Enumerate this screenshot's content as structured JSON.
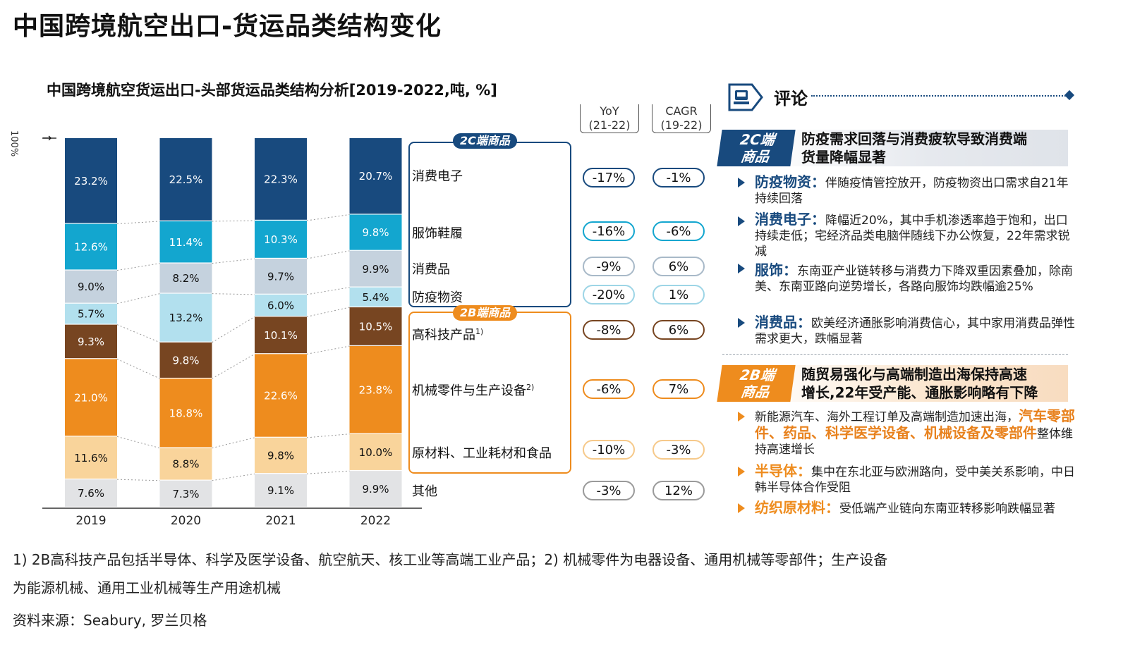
{
  "page_title": "中国跨境航空出口-货运品类结构变化",
  "chart_title": "中国跨境航空货运出口-头部货运品类结构分析[2019-2022,吨, %]",
  "chart_data": {
    "type": "bar",
    "stacked": true,
    "normalized_to": "100%",
    "y_axis_label": "100%",
    "categories": [
      "2019",
      "2020",
      "2021",
      "2022"
    ],
    "series": [
      {
        "name": "其他",
        "color": "#e2e3e5",
        "text_color": "#111111",
        "values": [
          7.6,
          7.3,
          9.1,
          9.9
        ],
        "labels": [
          "7.6%",
          "7.3%",
          "9.1%",
          "9.9%"
        ]
      },
      {
        "name": "原材料、工业耗材和食品",
        "color": "#f9d49b",
        "text_color": "#111111",
        "values": [
          11.6,
          8.8,
          9.8,
          10.0
        ],
        "labels": [
          "11.6%",
          "8.8%",
          "9.8%",
          "10.0%"
        ]
      },
      {
        "name": "机械零件与生产设备",
        "sup": "2)",
        "color": "#ee8c1e",
        "text_color": "#ffffff",
        "values": [
          21.0,
          18.8,
          22.6,
          23.8
        ],
        "labels": [
          "21.0%",
          "18.8%",
          "22.6%",
          "23.8%"
        ]
      },
      {
        "name": "高科技产品",
        "sup": "1)",
        "color": "#774521",
        "text_color": "#ffffff",
        "values": [
          9.3,
          9.8,
          10.1,
          10.5
        ],
        "labels": [
          "9.3%",
          "9.8%",
          "10.1%",
          "10.5%"
        ]
      },
      {
        "name": "防疫物资",
        "color": "#b2e0ee",
        "text_color": "#111111",
        "values": [
          5.7,
          13.2,
          6.0,
          5.4
        ],
        "labels": [
          "5.7%",
          "13.2%",
          "6.0%",
          "5.4%"
        ]
      },
      {
        "name": "消费品",
        "color": "#c5d2de",
        "text_color": "#111111",
        "values": [
          9.0,
          8.2,
          9.7,
          9.9
        ],
        "labels": [
          "9.0%",
          "8.2%",
          "9.7%",
          "9.9%"
        ]
      },
      {
        "name": "服饰鞋履",
        "color": "#13a6cf",
        "text_color": "#ffffff",
        "values": [
          12.6,
          11.4,
          10.3,
          9.8
        ],
        "labels": [
          "12.6%",
          "11.4%",
          "10.3%",
          "9.8%"
        ]
      },
      {
        "name": "消费电子",
        "color": "#184a7e",
        "text_color": "#ffffff",
        "values": [
          23.2,
          22.5,
          22.3,
          20.7
        ],
        "labels": [
          "23.2%",
          "22.5%",
          "22.3%",
          "20.7%"
        ]
      }
    ],
    "metrics_headers": {
      "yoy": [
        "YoY",
        "(21-22)"
      ],
      "cagr": [
        "CAGR",
        "(19-22)"
      ]
    },
    "metrics": [
      {
        "name": "消费电子",
        "yoy": "-17%",
        "cagr": "-1%",
        "border": "#184a7e"
      },
      {
        "name": "服饰鞋履",
        "yoy": "-16%",
        "cagr": "-6%",
        "border": "#13a6cf"
      },
      {
        "name": "消费品",
        "yoy": "-9%",
        "cagr": "6%",
        "border": "#a8b9c8"
      },
      {
        "name": "防疫物资",
        "yoy": "-20%",
        "cagr": "1%",
        "border": "#9dd5e6"
      },
      {
        "name": "高科技产品",
        "yoy": "-8%",
        "cagr": "6%",
        "border": "#774521"
      },
      {
        "name": "机械零件与生产设备",
        "yoy": "-6%",
        "cagr": "7%",
        "border": "#ee8c1e"
      },
      {
        "name": "原材料、工业耗材和食品",
        "yoy": "-10%",
        "cagr": "-3%",
        "border": "#f6c98a"
      },
      {
        "name": "其他",
        "yoy": "-3%",
        "cagr": "12%",
        "border": "#9a9a9a"
      }
    ],
    "group_tags": {
      "c2": "2C端商品",
      "b2": "2B端商品"
    }
  },
  "colors": {
    "navy": "#184a7e",
    "orange": "#ee8c1e",
    "sky": "#13a6cf"
  },
  "comment": {
    "title": "评论",
    "icon": "comment-icon",
    "c2": {
      "badge": [
        "2C端",
        "商品"
      ],
      "headline": [
        "防疫需求回落与消费疲软导致消费端",
        "货量降幅显著"
      ],
      "bullets": [
        {
          "key": "防疫物资：",
          "text": "伴随疫情管控放开，防疫物资出口需求自21年持续回落"
        },
        {
          "key": "消费电子：",
          "text": "降幅近20%，其中手机渗透率趋于饱和，出口持续走低；宅经济品类电脑伴随线下办公恢复，22年需求锐减"
        },
        {
          "key": "服饰：",
          "text": "东南亚产业链转移与消费力下降双重因素叠加，除南美、东南亚路向逆势增长，各路向服饰均跌幅逾25%"
        },
        {
          "key": "消费品：",
          "text": "欧美经济通胀影响消费信心，其中家用消费品弹性需求更大，跌幅显著"
        }
      ]
    },
    "b2": {
      "badge": [
        "2B端",
        "商品"
      ],
      "headline": [
        "随贸易强化与高端制造出海保持高速",
        "增长,22年受产能、通胀影响略有下降"
      ],
      "bullets": [
        {
          "pre": "新能源汽车、海外工程订单及高端制造加速出海，",
          "hl": "汽车零部件、药品、科学医学设备、机械设备及零部件",
          "post": "整体维持高速增长"
        },
        {
          "key": "半导体：",
          "text": "集中在东北亚与欧洲路向，受中美关系影响，中日韩半导体合作受阻"
        },
        {
          "key": "纺织原材料：",
          "text": "受低端产业链向东南亚转移影响跌幅显著"
        }
      ]
    }
  },
  "footnotes": [
    "1) 2B高科技产品包括半导体、科学及医学设备、航空航天、核工业等高端工业产品；2) 机械零件为电器设备、通用机械等零部件；生产设备",
    "为能源机械、通用工业机械等生产用途机械",
    "资料来源：Seabury, 罗兰贝格"
  ]
}
